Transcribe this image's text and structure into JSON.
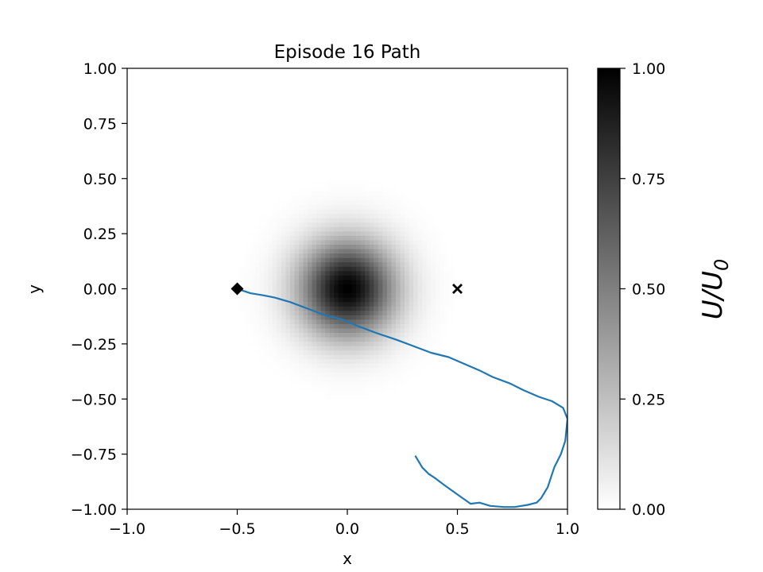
{
  "chart_data": {
    "type": "line",
    "title": "Episode 16 Path",
    "xlabel": "x",
    "ylabel": "y",
    "xlim": [
      -1.0,
      1.0
    ],
    "ylim": [
      -1.0,
      1.0
    ],
    "x_ticks": [
      "−1.0",
      "−0.5",
      "0.0",
      "0.5",
      "1.0"
    ],
    "x_tick_values": [
      -1.0,
      -0.5,
      0.0,
      0.5,
      1.0
    ],
    "y_ticks": [
      "1.00",
      "0.75",
      "0.50",
      "0.25",
      "0.00",
      "−0.25",
      "−0.50",
      "−0.75",
      "−1.00"
    ],
    "y_tick_values": [
      1.0,
      0.75,
      0.5,
      0.25,
      0.0,
      -0.25,
      -0.5,
      -0.75,
      -1.0
    ],
    "background_field": {
      "type": "gaussian",
      "center": [
        0.0,
        0.0
      ],
      "sigma": 0.15,
      "amplitude": 1.0,
      "colormap": "gray_r"
    },
    "colorbar": {
      "label_main": "U/U",
      "label_sub": "0",
      "range": [
        0.0,
        1.0
      ],
      "ticks": [
        "0.00",
        "0.25",
        "0.50",
        "0.75",
        "1.00"
      ],
      "tick_values": [
        0.0,
        0.25,
        0.5,
        0.75,
        1.0
      ]
    },
    "start_marker": {
      "shape": "diamond",
      "x": -0.5,
      "y": 0.0,
      "color": "#000000"
    },
    "goal_marker": {
      "shape": "x",
      "x": 0.5,
      "y": 0.0,
      "color": "#000000"
    },
    "series": [
      {
        "color": "#1f77b4",
        "points": [
          [
            -0.5,
            0.0
          ],
          [
            -0.47,
            -0.01
          ],
          [
            -0.44,
            -0.02
          ],
          [
            -0.38,
            -0.03
          ],
          [
            -0.33,
            -0.04
          ],
          [
            -0.26,
            -0.06
          ],
          [
            -0.18,
            -0.09
          ],
          [
            -0.1,
            -0.12
          ],
          [
            -0.02,
            -0.14
          ],
          [
            0.05,
            -0.17
          ],
          [
            0.13,
            -0.2
          ],
          [
            0.22,
            -0.23
          ],
          [
            0.3,
            -0.26
          ],
          [
            0.38,
            -0.29
          ],
          [
            0.46,
            -0.31
          ],
          [
            0.53,
            -0.34
          ],
          [
            0.6,
            -0.37
          ],
          [
            0.66,
            -0.4
          ],
          [
            0.74,
            -0.43
          ],
          [
            0.8,
            -0.46
          ],
          [
            0.87,
            -0.49
          ],
          [
            0.93,
            -0.51
          ],
          [
            0.98,
            -0.54
          ],
          [
            1.0,
            -0.59
          ],
          [
            0.99,
            -0.69
          ],
          [
            0.97,
            -0.75
          ],
          [
            0.94,
            -0.81
          ],
          [
            0.91,
            -0.9
          ],
          [
            0.88,
            -0.95
          ],
          [
            0.86,
            -0.97
          ],
          [
            0.82,
            -0.98
          ],
          [
            0.76,
            -0.99
          ],
          [
            0.71,
            -0.99
          ],
          [
            0.65,
            -0.985
          ],
          [
            0.6,
            -0.97
          ],
          [
            0.56,
            -0.975
          ],
          [
            0.51,
            -0.94
          ],
          [
            0.44,
            -0.89
          ],
          [
            0.4,
            -0.86
          ],
          [
            0.37,
            -0.84
          ],
          [
            0.34,
            -0.81
          ],
          [
            0.31,
            -0.76
          ]
        ]
      }
    ]
  }
}
